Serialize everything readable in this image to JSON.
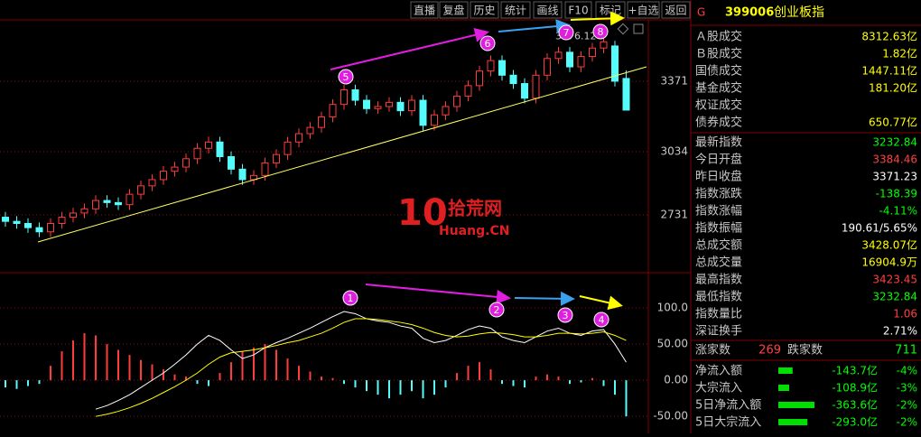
{
  "toolbar": {
    "buttons": [
      "直播",
      "复盘",
      "历史",
      "统计",
      "画线",
      "F10",
      "标记",
      "+自选",
      "返回"
    ]
  },
  "chart_data": [
    {
      "type": "candlestick",
      "open": [
        2720,
        2700,
        2690,
        2670,
        2650,
        2690,
        2720,
        2740,
        2760,
        2800,
        2790,
        2780,
        2830,
        2870,
        2900,
        2940,
        2960,
        3000,
        3050,
        3080,
        3010,
        2950,
        2900,
        2920,
        2980,
        3020,
        3080,
        3120,
        3150,
        3200,
        3260,
        3330,
        3280,
        3240,
        3250,
        3270,
        3230,
        3280,
        3160,
        3210,
        3250,
        3300,
        3350,
        3420,
        3470,
        3400,
        3360,
        3290,
        3400,
        3480,
        3510,
        3440,
        3490,
        3530,
        3540,
        3384.46
      ],
      "high": [
        2745,
        2725,
        2715,
        2695,
        2715,
        2745,
        2765,
        2785,
        2825,
        2825,
        2815,
        2855,
        2895,
        2925,
        2965,
        2985,
        3025,
        3075,
        3105,
        3105,
        3035,
        2975,
        2945,
        3005,
        3045,
        3105,
        3145,
        3175,
        3225,
        3285,
        3355,
        3355,
        3305,
        3275,
        3295,
        3295,
        3305,
        3305,
        3235,
        3275,
        3325,
        3375,
        3445,
        3495,
        3495,
        3425,
        3385,
        3425,
        3505,
        3535,
        3535,
        3515,
        3555,
        3576.12,
        3565,
        3423.45
      ],
      "low": [
        2675,
        2665,
        2645,
        2625,
        2625,
        2665,
        2695,
        2715,
        2735,
        2765,
        2755,
        2755,
        2805,
        2845,
        2875,
        2915,
        2935,
        2975,
        3025,
        2985,
        2925,
        2875,
        2875,
        2895,
        2955,
        2995,
        3055,
        3095,
        3125,
        3175,
        3235,
        3255,
        3215,
        3215,
        3225,
        3205,
        3205,
        3135,
        3135,
        3185,
        3225,
        3275,
        3325,
        3395,
        3375,
        3335,
        3265,
        3265,
        3375,
        3455,
        3415,
        3415,
        3465,
        3505,
        3346,
        3232.84
      ],
      "close": [
        2700,
        2690,
        2670,
        2650,
        2690,
        2720,
        2740,
        2760,
        2800,
        2790,
        2780,
        2830,
        2870,
        2900,
        2940,
        2960,
        3000,
        3050,
        3080,
        3010,
        2950,
        2900,
        2920,
        2980,
        3020,
        3080,
        3120,
        3150,
        3200,
        3260,
        3330,
        3280,
        3240,
        3250,
        3270,
        3230,
        3280,
        3160,
        3210,
        3250,
        3300,
        3350,
        3420,
        3470,
        3400,
        3360,
        3290,
        3400,
        3480,
        3510,
        3440,
        3490,
        3530,
        3560,
        3371.23,
        3232.84
      ],
      "up_color": "#ff3c3c",
      "down_color": "#54fcfc",
      "ylim": [
        2463,
        3665
      ],
      "yticks": [
        3371,
        3034,
        2731
      ],
      "grid": true
    },
    {
      "type": "line",
      "series": [
        {
          "color": "#ffffff",
          "values": [
            null,
            null,
            null,
            null,
            null,
            null,
            null,
            null,
            -40,
            -35,
            -28,
            -20,
            -10,
            0,
            10,
            22,
            35,
            50,
            62,
            55,
            42,
            30,
            35,
            45,
            52,
            58,
            65,
            72,
            80,
            88,
            95,
            92,
            85,
            82,
            80,
            75,
            72,
            58,
            52,
            55,
            62,
            70,
            75,
            72,
            60,
            55,
            52,
            60,
            68,
            72,
            65,
            62,
            68,
            70,
            50,
            25
          ]
        },
        {
          "color": "#ffff00",
          "values": [
            null,
            null,
            null,
            null,
            null,
            null,
            null,
            null,
            -50,
            -47,
            -43,
            -38,
            -32,
            -25,
            -17,
            -9,
            0,
            10,
            22,
            32,
            38,
            40,
            42,
            45,
            48,
            52,
            55,
            60,
            65,
            72,
            80,
            85,
            85,
            84,
            82,
            80,
            77,
            72,
            66,
            62,
            60,
            61,
            64,
            66,
            65,
            63,
            60,
            60,
            62,
            65,
            65,
            64,
            65,
            67,
            62,
            55
          ]
        }
      ],
      "bars": {
        "values": [
          -10,
          -12,
          -8,
          -5,
          20,
          40,
          55,
          65,
          62,
          50,
          42,
          35,
          28,
          22,
          15,
          8,
          5,
          -5,
          -8,
          10,
          25,
          40,
          45,
          50,
          42,
          30,
          20,
          12,
          5,
          3,
          -5,
          -10,
          -15,
          -20,
          -25,
          -20,
          -15,
          -25,
          -20,
          -10,
          10,
          20,
          25,
          15,
          -5,
          -8,
          -10,
          5,
          8,
          5,
          -5,
          -3,
          3,
          -8,
          -20,
          -50
        ],
        "up_color": "#ff3c3c",
        "down_color": "#54fcfc"
      },
      "ylim": [
        -71,
        145
      ],
      "yticks": [
        {
          "value": 100,
          "label": "100.0"
        },
        {
          "value": 50,
          "label": "50.00"
        },
        {
          "value": 0,
          "label": "0.00"
        },
        {
          "value": -50,
          "label": "-50.00"
        }
      ],
      "grid": true
    }
  ],
  "annotations": {
    "price_circles": [
      "5",
      "6",
      "7",
      "8"
    ],
    "indicator_circles": [
      "1",
      "2",
      "3",
      "4"
    ]
  },
  "watermark": {
    "digits": "10",
    "name": "拾荒网",
    "domain": "Huang.CN"
  },
  "side_panel": {
    "header": {
      "letter": "G",
      "code": "399006",
      "name": "创业板指"
    },
    "rows": [
      {
        "label": "Ａ股成交",
        "value": "8312.63亿",
        "color": "#ffff00"
      },
      {
        "label": "Ｂ股成交",
        "value": "1.82亿",
        "color": "#ffff00"
      },
      {
        "label": "国债成交",
        "value": "1447.11亿",
        "color": "#ffff00"
      },
      {
        "label": "基金成交",
        "value": "181.20亿",
        "color": "#ffff00"
      },
      {
        "label": "权证成交"
      },
      {
        "label": "债券成交",
        "value": "650.77亿",
        "color": "#ffff00"
      },
      {
        "label": "最新指数",
        "value": "3232.84",
        "color": "#00ff00"
      },
      {
        "label": "今日开盘",
        "value": "3384.46",
        "color": "#ff4040"
      },
      {
        "label": "昨日收盘",
        "value": "3371.23",
        "color": "#ffffff"
      },
      {
        "label": "指数涨跌",
        "value": "-138.39",
        "color": "#00ff00"
      },
      {
        "label": "指数涨幅",
        "value": "-4.11%",
        "color": "#00ff00"
      },
      {
        "label": "指数振幅",
        "value": "190.61/5.65%",
        "color": "#ffffff"
      },
      {
        "label": "总成交额",
        "value": "3428.07亿",
        "color": "#ffff00"
      },
      {
        "label": "总成交量",
        "value": "16904.9万",
        "color": "#ffff00"
      },
      {
        "label": "最高指数",
        "value": "3423.45",
        "color": "#ff4040"
      },
      {
        "label": "最低指数",
        "value": "3232.84",
        "color": "#00ff00"
      },
      {
        "label": "指数量比",
        "value": "1.06",
        "color": "#ff4040"
      },
      {
        "label": "深证换手",
        "value": "2.71%",
        "color": "#ffffff"
      }
    ],
    "breadth": {
      "up_label": "涨家数",
      "up": "269",
      "down_label": "跌家数",
      "down": "711"
    },
    "flows": [
      {
        "label": "净流入额",
        "value": -143.7,
        "value_label": "-143.7亿",
        "pct": "-4%"
      },
      {
        "label": "大宗流入",
        "value": -108.9,
        "value_label": "-108.9亿",
        "pct": "-3%"
      },
      {
        "label": "5日净流入额",
        "value": -363.6,
        "value_label": "-363.6亿",
        "pct": "-2%"
      },
      {
        "label": "5日大宗流入",
        "value": -293.0,
        "value_label": "-293.0亿",
        "pct": "-2%"
      }
    ]
  }
}
